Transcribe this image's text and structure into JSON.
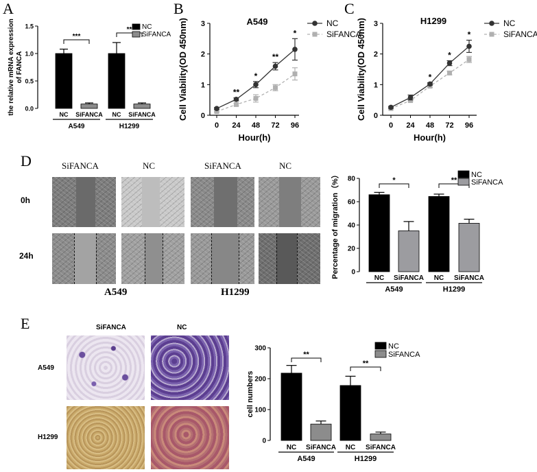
{
  "panel_letters": {
    "A": "A",
    "B": "B",
    "C": "C",
    "D": "D",
    "E": "E"
  },
  "chart_data": [
    {
      "id": "A",
      "type": "bar",
      "ylabel": "the relative mRNA expression\nof FANCA",
      "ylim": [
        0,
        1.5
      ],
      "yticks": [
        "0.0",
        "0.5",
        "1.0",
        "1.5"
      ],
      "groups": [
        "A549",
        "H1299"
      ],
      "categories": [
        "NC",
        "SiFANCA",
        "NC",
        "SiFANCA"
      ],
      "values": [
        1.0,
        0.08,
        1.0,
        0.08
      ],
      "errors": [
        0.08,
        0.02,
        0.2,
        0.02
      ],
      "colors": [
        "#000000",
        "#8c8c8c",
        "#000000",
        "#8c8c8c"
      ],
      "legend": [
        {
          "label": "NC",
          "color": "#000000"
        },
        {
          "label": "SiFANCA",
          "color": "#8c8c8c"
        }
      ],
      "legend_position": "top-right",
      "significance": [
        "***",
        "**"
      ]
    },
    {
      "id": "B",
      "type": "line",
      "title": "A549",
      "xlabel": "Hour(h)",
      "ylabel": "Cell Viability(OD 450nm)",
      "x": [
        0,
        24,
        48,
        72,
        96
      ],
      "ylim": [
        0,
        3
      ],
      "yticks": [
        "0",
        "1",
        "2",
        "3"
      ],
      "series": [
        {
          "name": "NC",
          "values": [
            0.22,
            0.52,
            1.0,
            1.6,
            2.15
          ],
          "errors": [
            0.03,
            0.05,
            0.1,
            0.12,
            0.35
          ],
          "color": "#333333",
          "dashed": false
        },
        {
          "name": "SiFANCA",
          "values": [
            0.12,
            0.35,
            0.55,
            0.9,
            1.35
          ],
          "errors": [
            0.02,
            0.04,
            0.12,
            0.1,
            0.2
          ],
          "color": "#b0b0b0",
          "dashed": true
        }
      ],
      "significance": [
        "**",
        "*",
        "**",
        "*"
      ],
      "legend_position": "top-right"
    },
    {
      "id": "C",
      "type": "line",
      "title": "H1299",
      "xlabel": "Hour(h)",
      "ylabel": "Cell Viability(OD 450nm)",
      "x": [
        0,
        24,
        48,
        72,
        96
      ],
      "ylim": [
        0,
        3
      ],
      "yticks": [
        "0",
        "1",
        "2",
        "3"
      ],
      "series": [
        {
          "name": "NC",
          "values": [
            0.26,
            0.58,
            1.02,
            1.7,
            2.25
          ],
          "errors": [
            0.03,
            0.08,
            0.04,
            0.08,
            0.2
          ],
          "color": "#333333",
          "dashed": false
        },
        {
          "name": "SiFANCA",
          "values": [
            0.22,
            0.48,
            0.95,
            1.38,
            1.82
          ],
          "errors": [
            0.02,
            0.04,
            0.04,
            0.06,
            0.1
          ],
          "color": "#b0b0b0",
          "dashed": true
        }
      ],
      "significance": [
        "*",
        "*",
        "*"
      ],
      "legend_position": "top-right"
    },
    {
      "id": "D",
      "type": "bar",
      "ylabel": "Percentage of migration（%）",
      "ylim": [
        0,
        80
      ],
      "yticks": [
        "0",
        "20",
        "40",
        "60",
        "80"
      ],
      "groups": [
        "A549",
        "H1299"
      ],
      "categories": [
        "NC",
        "SiFANCA",
        "NC",
        "SiFANCA"
      ],
      "values": [
        66,
        35,
        64.5,
        41.5
      ],
      "errors": [
        2,
        8,
        2,
        3.5
      ],
      "colors": [
        "#000000",
        "#9c9ca0",
        "#000000",
        "#9c9ca0"
      ],
      "legend": [
        {
          "label": "NC",
          "color": "#000000"
        },
        {
          "label": "SiFANCA",
          "color": "#9c9ca0"
        }
      ],
      "legend_position": "top-right",
      "significance": [
        "*",
        "**"
      ]
    },
    {
      "id": "E",
      "type": "bar",
      "ylabel": "cell numbers",
      "ylim": [
        0,
        300
      ],
      "yticks": [
        "0",
        "100",
        "200",
        "300"
      ],
      "groups": [
        "A549",
        "H1299"
      ],
      "categories": [
        "NC",
        "SiFANCA",
        "NC",
        "SiFANCA"
      ],
      "values": [
        218,
        53,
        178,
        21
      ],
      "errors": [
        25,
        10,
        30,
        6
      ],
      "colors": [
        "#000000",
        "#8c8c8c",
        "#000000",
        "#8c8c8c"
      ],
      "legend": [
        {
          "label": "NC",
          "color": "#000000"
        },
        {
          "label": "SiFANCA",
          "color": "#8c8c8c"
        }
      ],
      "legend_position": "top-right",
      "significance": [
        "**",
        "**"
      ]
    }
  ],
  "wound_panel": {
    "columns": [
      "SiFANCA",
      "NC",
      "SiFANCA",
      "NC"
    ],
    "rows": [
      "0h",
      "24h"
    ],
    "cell_lines": [
      "A549",
      "H1299"
    ]
  },
  "transwell_panel": {
    "columns": [
      "SiFANCA",
      "NC"
    ],
    "rows": [
      "A549",
      "H1299"
    ]
  }
}
